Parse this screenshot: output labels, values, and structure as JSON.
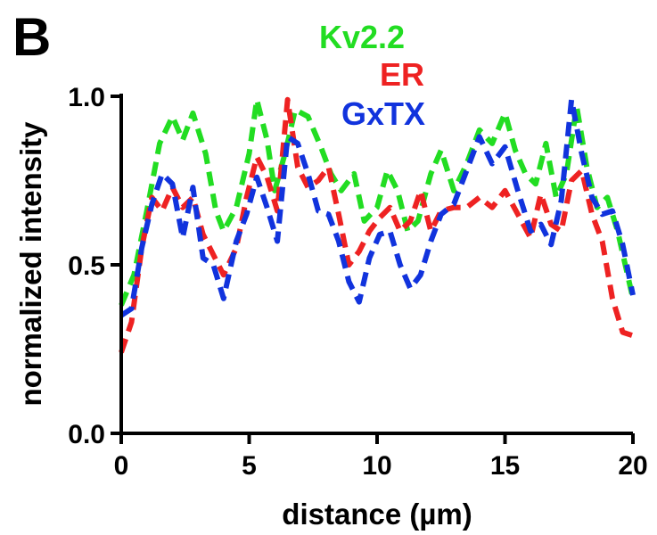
{
  "chart_data": {
    "type": "line",
    "panel_label": "B",
    "xlabel": "distance (µm)",
    "ylabel": "normalized intensity",
    "xlim": [
      0,
      20
    ],
    "ylim": [
      0,
      1
    ],
    "x_ticks": [
      0,
      5,
      10,
      15,
      20
    ],
    "x_tick_labels": [
      "0",
      "5",
      "10",
      "15",
      "20"
    ],
    "y_ticks": [
      0,
      0.5,
      1
    ],
    "y_tick_labels": [
      "0.0",
      "0.5",
      "1.0"
    ],
    "grid": false,
    "legend_position": "top-center",
    "series": [
      {
        "name": "Kv2.2",
        "color": "#22dd22",
        "points": [
          [
            0,
            0.38
          ],
          [
            0.5,
            0.47
          ],
          [
            1,
            0.66
          ],
          [
            1.5,
            0.86
          ],
          [
            2,
            0.94
          ],
          [
            2.4,
            0.87
          ],
          [
            2.8,
            0.95
          ],
          [
            3.3,
            0.83
          ],
          [
            3.7,
            0.66
          ],
          [
            4,
            0.6
          ],
          [
            4.5,
            0.67
          ],
          [
            5,
            0.83
          ],
          [
            5.3,
            0.99
          ],
          [
            5.7,
            0.87
          ],
          [
            6,
            0.72
          ],
          [
            6.4,
            0.83
          ],
          [
            6.8,
            0.96
          ],
          [
            7.3,
            0.94
          ],
          [
            7.8,
            0.85
          ],
          [
            8.2,
            0.77
          ],
          [
            8.6,
            0.72
          ],
          [
            9.1,
            0.77
          ],
          [
            9.5,
            0.63
          ],
          [
            10,
            0.67
          ],
          [
            10.4,
            0.78
          ],
          [
            10.8,
            0.72
          ],
          [
            11.2,
            0.6
          ],
          [
            11.6,
            0.63
          ],
          [
            12.1,
            0.77
          ],
          [
            12.5,
            0.84
          ],
          [
            13,
            0.72
          ],
          [
            13.5,
            0.8
          ],
          [
            14,
            0.9
          ],
          [
            14.5,
            0.86
          ],
          [
            15,
            0.95
          ],
          [
            15.4,
            0.84
          ],
          [
            15.8,
            0.77
          ],
          [
            16.2,
            0.74
          ],
          [
            16.6,
            0.86
          ],
          [
            17,
            0.7
          ],
          [
            17.4,
            0.77
          ],
          [
            17.8,
            0.97
          ],
          [
            18.2,
            0.79
          ],
          [
            18.6,
            0.67
          ],
          [
            19,
            0.7
          ],
          [
            19.4,
            0.6
          ],
          [
            20,
            0.4
          ]
        ]
      },
      {
        "name": "ER",
        "color": "#ee2222",
        "points": [
          [
            0,
            0.24
          ],
          [
            0.4,
            0.33
          ],
          [
            0.8,
            0.55
          ],
          [
            1.2,
            0.7
          ],
          [
            1.6,
            0.66
          ],
          [
            2,
            0.73
          ],
          [
            2.4,
            0.67
          ],
          [
            2.8,
            0.7
          ],
          [
            3.2,
            0.59
          ],
          [
            3.6,
            0.53
          ],
          [
            4,
            0.47
          ],
          [
            4.5,
            0.55
          ],
          [
            4.9,
            0.7
          ],
          [
            5.3,
            0.82
          ],
          [
            5.7,
            0.76
          ],
          [
            6.1,
            0.66
          ],
          [
            6.5,
            0.99
          ],
          [
            6.9,
            0.79
          ],
          [
            7.3,
            0.73
          ],
          [
            7.7,
            0.75
          ],
          [
            8.1,
            0.79
          ],
          [
            8.5,
            0.65
          ],
          [
            8.9,
            0.5
          ],
          [
            9.3,
            0.54
          ],
          [
            9.7,
            0.6
          ],
          [
            10.1,
            0.64
          ],
          [
            10.5,
            0.67
          ],
          [
            10.9,
            0.6
          ],
          [
            11.3,
            0.63
          ],
          [
            11.7,
            0.72
          ],
          [
            12.1,
            0.6
          ],
          [
            12.5,
            0.66
          ],
          [
            13,
            0.67
          ],
          [
            13.5,
            0.67
          ],
          [
            14,
            0.7
          ],
          [
            14.5,
            0.67
          ],
          [
            15,
            0.72
          ],
          [
            15.5,
            0.65
          ],
          [
            16,
            0.58
          ],
          [
            16.4,
            0.71
          ],
          [
            16.8,
            0.62
          ],
          [
            17.2,
            0.6
          ],
          [
            17.6,
            0.75
          ],
          [
            18,
            0.78
          ],
          [
            18.4,
            0.65
          ],
          [
            18.8,
            0.57
          ],
          [
            19.2,
            0.4
          ],
          [
            19.6,
            0.3
          ],
          [
            20,
            0.29
          ]
        ]
      },
      {
        "name": "GxTX",
        "color": "#1133dd",
        "points": [
          [
            0,
            0.35
          ],
          [
            0.4,
            0.37
          ],
          [
            0.8,
            0.55
          ],
          [
            1.2,
            0.68
          ],
          [
            1.6,
            0.77
          ],
          [
            2,
            0.74
          ],
          [
            2.4,
            0.58
          ],
          [
            2.8,
            0.73
          ],
          [
            3.2,
            0.52
          ],
          [
            3.6,
            0.5
          ],
          [
            4,
            0.4
          ],
          [
            4.5,
            0.57
          ],
          [
            4.9,
            0.65
          ],
          [
            5.3,
            0.76
          ],
          [
            5.7,
            0.67
          ],
          [
            6.1,
            0.57
          ],
          [
            6.5,
            0.88
          ],
          [
            6.9,
            0.86
          ],
          [
            7.3,
            0.77
          ],
          [
            7.7,
            0.66
          ],
          [
            8.1,
            0.65
          ],
          [
            8.5,
            0.57
          ],
          [
            8.9,
            0.45
          ],
          [
            9.3,
            0.39
          ],
          [
            9.7,
            0.52
          ],
          [
            10.1,
            0.59
          ],
          [
            10.5,
            0.6
          ],
          [
            10.9,
            0.5
          ],
          [
            11.3,
            0.43
          ],
          [
            11.7,
            0.47
          ],
          [
            12.1,
            0.57
          ],
          [
            12.5,
            0.65
          ],
          [
            13,
            0.68
          ],
          [
            13.5,
            0.78
          ],
          [
            14,
            0.88
          ],
          [
            14.5,
            0.8
          ],
          [
            15,
            0.85
          ],
          [
            15.5,
            0.72
          ],
          [
            16,
            0.6
          ],
          [
            16.4,
            0.62
          ],
          [
            16.8,
            0.56
          ],
          [
            17.2,
            0.69
          ],
          [
            17.6,
            0.99
          ],
          [
            18,
            0.83
          ],
          [
            18.4,
            0.7
          ],
          [
            18.8,
            0.65
          ],
          [
            19.2,
            0.66
          ],
          [
            19.6,
            0.56
          ],
          [
            20,
            0.41
          ]
        ]
      }
    ]
  }
}
